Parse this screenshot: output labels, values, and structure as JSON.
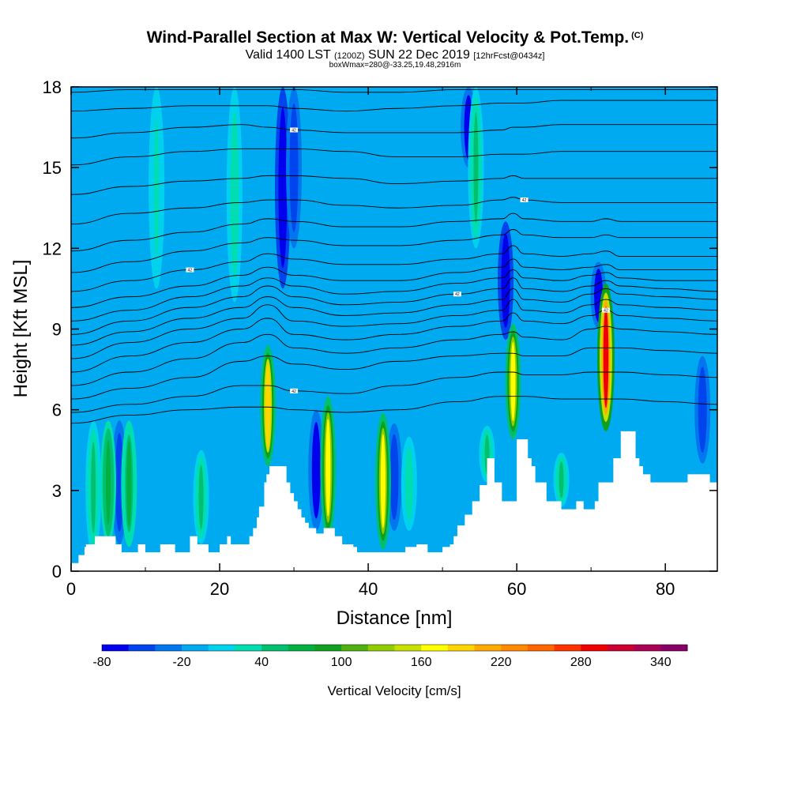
{
  "header": {
    "title": "Wind-Parallel Section at Max W: Vertical Velocity & Pot.Temp.",
    "title_suffix": "(C)",
    "valid_prefix": "Valid 1400 LST",
    "valid_utc": "(1200Z)",
    "valid_date": "SUN 22 Dec 2019",
    "forecast": "[12hrFcst@0434z]",
    "boxwmax": "boxWmax=280@-33.25,19.48,2916m"
  },
  "chart_data": {
    "type": "heatmap",
    "xlabel": "Distance [nm]",
    "ylabel": "Height [Kft MSL]",
    "xlim": [
      0,
      87
    ],
    "ylim": [
      0,
      18
    ],
    "x_ticks": [
      0,
      20,
      40,
      60,
      80
    ],
    "y_ticks": [
      0,
      3,
      6,
      9,
      12,
      15,
      18
    ],
    "colorbar": {
      "label": "Vertical Velocity [cm/s]",
      "min": -80,
      "max": 360,
      "step": 20,
      "tick_labels": [
        -80,
        -20,
        40,
        100,
        160,
        220,
        280,
        340
      ],
      "colors": [
        "#0000ee",
        "#0044ee",
        "#0077ee",
        "#00aaf0",
        "#00d2ee",
        "#00ddb0",
        "#00c070",
        "#00b040",
        "#10a020",
        "#50b010",
        "#90cc00",
        "#c8e000",
        "#ffff00",
        "#ffd400",
        "#ffaa00",
        "#ff8800",
        "#ff6600",
        "#ff3300",
        "#ee0000",
        "#cc0033",
        "#aa0055",
        "#880066"
      ]
    },
    "background_value": -20,
    "updrafts": [
      {
        "x": 3.0,
        "bottom": 0.6,
        "top": 5.6,
        "peak": 45
      },
      {
        "x": 5.0,
        "bottom": 1.0,
        "top": 5.6,
        "peak": 75
      },
      {
        "x": 7.8,
        "bottom": 0.9,
        "top": 5.6,
        "peak": 70
      },
      {
        "x": 11.5,
        "bottom": 10.5,
        "top": 18,
        "peak": 20
      },
      {
        "x": 17.5,
        "bottom": 1.0,
        "top": 4.5,
        "peak": 40
      },
      {
        "x": 22.0,
        "bottom": 10.0,
        "top": 18,
        "peak": 30
      },
      {
        "x": 26.5,
        "bottom": 3.9,
        "top": 8.4,
        "peak": 180
      },
      {
        "x": 34.6,
        "bottom": 1.2,
        "top": 6.5,
        "peak": 165
      },
      {
        "x": 42.0,
        "bottom": 0.8,
        "top": 5.9,
        "peak": 160
      },
      {
        "x": 45.5,
        "bottom": 1.5,
        "top": 5.0,
        "peak": 35
      },
      {
        "x": 54.5,
        "bottom": 12.0,
        "top": 18,
        "peak": 45
      },
      {
        "x": 56.0,
        "bottom": 3.3,
        "top": 5.4,
        "peak": 40
      },
      {
        "x": 59.5,
        "bottom": 4.9,
        "top": 9.2,
        "peak": 165
      },
      {
        "x": 66.0,
        "bottom": 2.4,
        "top": 4.4,
        "peak": 45
      },
      {
        "x": 72.0,
        "bottom": 5.2,
        "top": 10.7,
        "peak": 280
      }
    ],
    "downdrafts": [
      {
        "x": 6.5,
        "bottom": 1.0,
        "top": 5.6,
        "peak": -55
      },
      {
        "x": 28.5,
        "bottom": 10.5,
        "top": 18,
        "peak": -80
      },
      {
        "x": 30.0,
        "bottom": 12.0,
        "top": 18,
        "peak": -60
      },
      {
        "x": 33.0,
        "bottom": 1.5,
        "top": 6.0,
        "peak": -70
      },
      {
        "x": 43.5,
        "bottom": 1.5,
        "top": 5.5,
        "peak": -50
      },
      {
        "x": 53.5,
        "bottom": 15.0,
        "top": 18,
        "peak": -70
      },
      {
        "x": 58.5,
        "bottom": 8.6,
        "top": 13.0,
        "peak": -75
      },
      {
        "x": 71.0,
        "bottom": 9.0,
        "top": 11.5,
        "peak": -70
      },
      {
        "x": 85.0,
        "bottom": 4.0,
        "top": 8.0,
        "peak": -60
      }
    ],
    "terrain": {
      "x": [
        0,
        1,
        1.8,
        2,
        2.8,
        3.2,
        6,
        6.8,
        7.5,
        9,
        9.2,
        10,
        12,
        14,
        15,
        16,
        17,
        18,
        18.5,
        20,
        21,
        21.5,
        23,
        24,
        24.5,
        25,
        25.3,
        26,
        26.3,
        26.7,
        27.5,
        28.5,
        29,
        29.5,
        30,
        30.5,
        31,
        31.5,
        32,
        33,
        34,
        35.5,
        36.5,
        37.5,
        38,
        38.5,
        40,
        41,
        43,
        45,
        46.5,
        48,
        49,
        50,
        51,
        51.5,
        52,
        53,
        54,
        55,
        56,
        57,
        58,
        59,
        60,
        61,
        61.5,
        62,
        62.5,
        64,
        65.5,
        66,
        67,
        68,
        68.5,
        69,
        70,
        70.5,
        71,
        73,
        74,
        75,
        76,
        76.5,
        77,
        78,
        80,
        82,
        83,
        84,
        85,
        86,
        87
      ],
      "h": [
        0.3,
        0.6,
        0.9,
        1.0,
        1.0,
        1.3,
        1.0,
        0.7,
        0.7,
        1.0,
        1.0,
        0.7,
        1.0,
        0.7,
        0.7,
        1.3,
        1.0,
        1.0,
        0.7,
        1.0,
        1.3,
        1.0,
        1.0,
        1.3,
        1.6,
        2.0,
        2.4,
        3.3,
        3.6,
        3.9,
        3.9,
        3.9,
        3.3,
        2.9,
        2.6,
        2.3,
        2.0,
        1.8,
        1.6,
        1.4,
        1.6,
        1.3,
        1.0,
        1.0,
        0.9,
        0.7,
        0.7,
        0.7,
        0.7,
        0.9,
        1.0,
        0.7,
        0.7,
        0.9,
        1.0,
        1.3,
        1.7,
        2.1,
        2.6,
        3.2,
        4.2,
        3.3,
        2.6,
        2.6,
        4.9,
        4.9,
        4.2,
        3.9,
        3.3,
        2.6,
        2.6,
        2.3,
        2.3,
        2.6,
        2.6,
        2.3,
        2.3,
        2.6,
        3.3,
        4.2,
        5.2,
        5.2,
        4.2,
        3.9,
        3.6,
        3.3,
        3.3,
        3.3,
        3.6,
        3.6,
        3.6,
        3.3,
        3.3,
        3.3
      ]
    },
    "isentropes": {
      "label_text": "42",
      "sample_x": [
        0,
        8,
        16,
        23,
        26.5,
        30,
        37,
        44,
        52,
        58,
        59.5,
        61,
        66,
        70,
        72,
        74,
        80,
        87
      ],
      "levels": [
        [
          5.5,
          5.8,
          6.0,
          6.1,
          6.1,
          6.0,
          5.9,
          6.0,
          6.3,
          6.5,
          6.5,
          6.5,
          6.4,
          6.4,
          6.4,
          6.4,
          6.3,
          6.2
        ],
        [
          5.9,
          6.2,
          6.5,
          6.9,
          6.9,
          6.7,
          6.6,
          6.9,
          7.2,
          7.4,
          7.4,
          7.3,
          7.3,
          7.4,
          7.4,
          7.4,
          7.3,
          7.2
        ],
        [
          6.4,
          6.8,
          7.2,
          7.8,
          8.0,
          7.7,
          7.5,
          7.8,
          8.0,
          8.1,
          8.1,
          8.0,
          8.0,
          8.3,
          8.3,
          8.3,
          8.2,
          8.1
        ],
        [
          6.9,
          7.4,
          7.9,
          8.5,
          8.8,
          8.3,
          8.1,
          8.3,
          8.6,
          8.8,
          8.9,
          8.7,
          8.6,
          9.0,
          9.1,
          9.0,
          8.9,
          8.8
        ],
        [
          7.4,
          8.0,
          8.5,
          9.0,
          9.4,
          8.8,
          8.6,
          8.8,
          9.1,
          9.3,
          9.6,
          9.3,
          9.2,
          9.5,
          9.7,
          9.5,
          9.4,
          9.3
        ],
        [
          7.9,
          8.5,
          9.0,
          9.4,
          9.9,
          9.3,
          9.1,
          9.2,
          9.5,
          9.7,
          10.1,
          9.7,
          9.6,
          9.9,
          10.1,
          9.9,
          9.8,
          9.7
        ],
        [
          8.4,
          8.9,
          9.4,
          9.8,
          10.2,
          9.8,
          9.5,
          9.6,
          9.9,
          10.1,
          10.5,
          10.1,
          10.0,
          10.3,
          10.5,
          10.3,
          10.2,
          10.1
        ],
        [
          8.8,
          9.3,
          9.8,
          10.2,
          10.6,
          10.2,
          9.9,
          10.0,
          10.3,
          10.5,
          10.9,
          10.5,
          10.4,
          10.6,
          10.8,
          10.6,
          10.5,
          10.4
        ],
        [
          9.3,
          9.7,
          10.2,
          10.6,
          10.9,
          10.6,
          10.3,
          10.4,
          10.7,
          10.9,
          11.2,
          10.9,
          10.8,
          11.0,
          11.1,
          10.9,
          10.8,
          10.8
        ],
        [
          9.8,
          10.2,
          10.6,
          11.0,
          11.3,
          11.0,
          10.8,
          10.8,
          11.1,
          11.3,
          11.6,
          11.3,
          11.2,
          11.3,
          11.4,
          11.2,
          11.2,
          11.2
        ],
        [
          10.4,
          10.8,
          11.2,
          11.5,
          11.8,
          11.6,
          11.4,
          11.4,
          11.6,
          11.8,
          12.1,
          11.8,
          11.7,
          11.8,
          11.9,
          11.7,
          11.7,
          11.7
        ],
        [
          11.1,
          11.5,
          11.9,
          12.2,
          12.4,
          12.3,
          12.1,
          12.1,
          12.3,
          12.5,
          12.7,
          12.5,
          12.4,
          12.4,
          12.5,
          12.4,
          12.4,
          12.4
        ],
        [
          11.9,
          12.3,
          12.6,
          12.9,
          13.1,
          13.0,
          12.8,
          12.8,
          13.0,
          13.1,
          13.3,
          13.1,
          13.0,
          13.0,
          13.1,
          13.0,
          13.0,
          13.0
        ],
        [
          12.9,
          13.3,
          13.5,
          13.7,
          13.8,
          13.8,
          13.6,
          13.5,
          13.6,
          13.8,
          13.9,
          13.8,
          13.7,
          13.7,
          13.7,
          13.7,
          13.7,
          13.7
        ],
        [
          14.0,
          14.3,
          14.5,
          14.6,
          14.7,
          14.7,
          14.6,
          14.4,
          14.5,
          14.6,
          14.7,
          14.6,
          14.6,
          14.6,
          14.6,
          14.6,
          14.6,
          14.6
        ],
        [
          15.1,
          15.4,
          15.6,
          15.7,
          15.7,
          15.7,
          15.6,
          15.4,
          15.4,
          15.5,
          15.5,
          15.5,
          15.6,
          15.6,
          15.6,
          15.6,
          15.6,
          15.6
        ],
        [
          16.1,
          16.3,
          16.5,
          16.6,
          16.5,
          16.4,
          16.3,
          16.3,
          16.3,
          16.4,
          16.5,
          16.5,
          16.6,
          16.6,
          16.6,
          16.6,
          16.6,
          16.6
        ],
        [
          17.1,
          17.2,
          17.3,
          17.3,
          17.3,
          17.2,
          17.1,
          17.2,
          17.3,
          17.4,
          17.4,
          17.4,
          17.5,
          17.5,
          17.5,
          17.5,
          17.5,
          17.5
        ],
        [
          17.8,
          17.9,
          17.9,
          17.9,
          17.9,
          17.9,
          17.8,
          17.8,
          17.9,
          17.9,
          17.9,
          17.9,
          17.9,
          17.9,
          17.9,
          17.9,
          17.9,
          17.9
        ]
      ]
    }
  }
}
